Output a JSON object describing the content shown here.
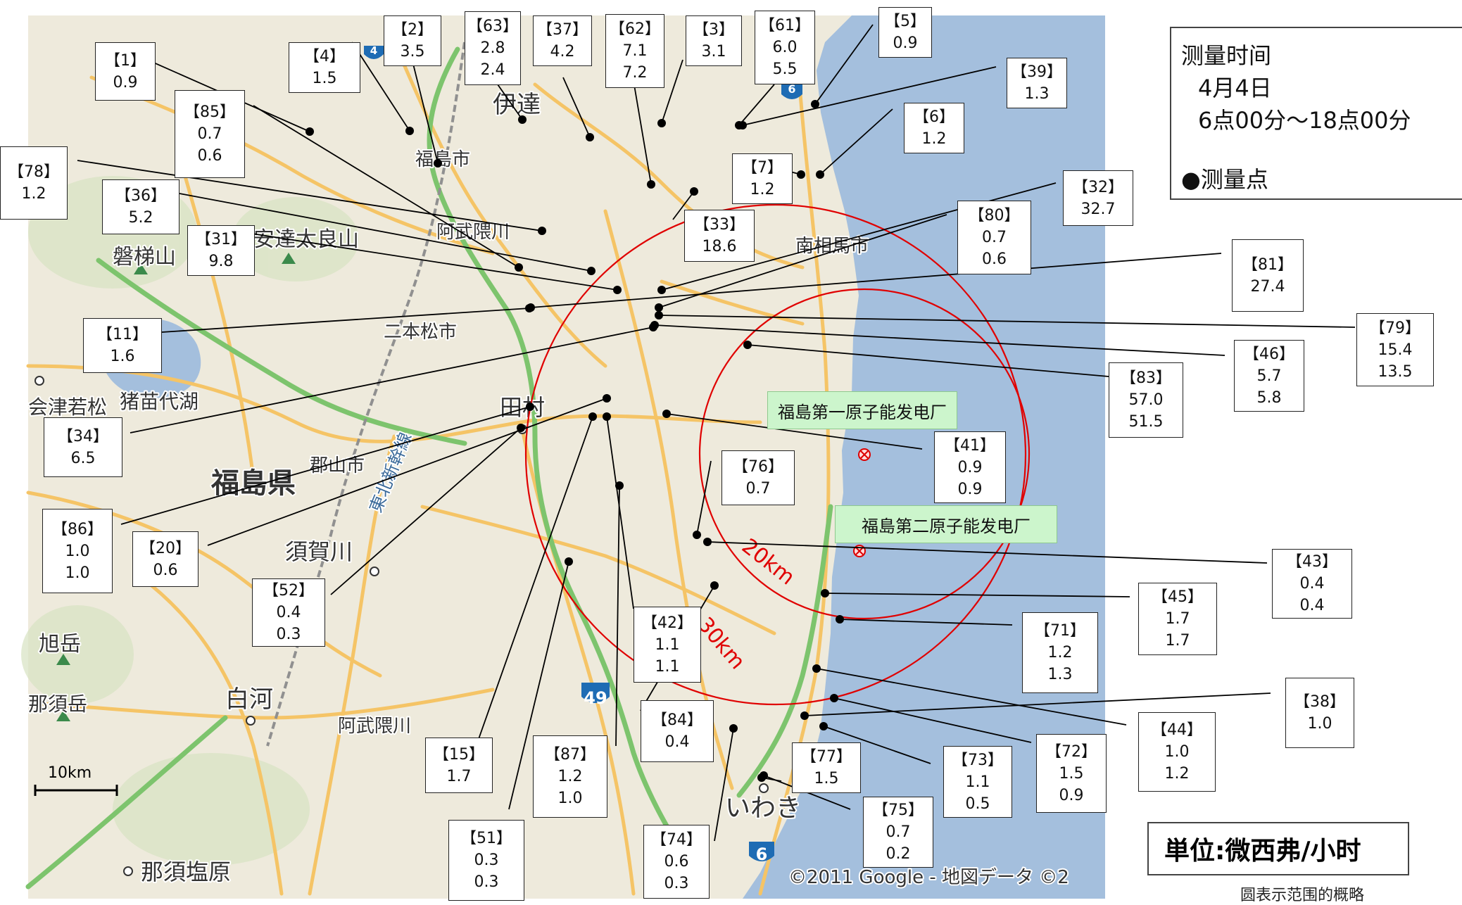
{
  "top_note": "测量 - 测量时间 测量点",
  "legend": {
    "title": "测量时间",
    "date": "4月4日",
    "time": "6点00分～18点00分",
    "point": "●测量点"
  },
  "unit": "単位:微西弗/小时",
  "circle_note": "圆表示范围的概略",
  "copyright": "©2011 Google - 地図データ ©2",
  "scale_label": "10km",
  "ring_labels": {
    "r20": "20km",
    "r30": "30km"
  },
  "plants": {
    "daiichi": "福島第一原子能发电厂",
    "daini": "福島第二原子能发电厂"
  },
  "place_names": {
    "date": "伊達",
    "fukushima_city": "福島市",
    "abukuma_n": "阿武隈川",
    "adatara": "安達太良山",
    "bandai": "磐梯山",
    "nihonmatsu": "二本松市",
    "aizuwakamatsu": "会津若松",
    "inawashiro": "猪苗代湖",
    "tamura": "田村",
    "koriyama": "郡山市",
    "fukushima_pref": "福島県",
    "sukagawa": "須賀川",
    "shinkansen": "東北新幹線",
    "asahidake": "旭岳",
    "nasudake": "那須岳",
    "shirakawa": "白河",
    "abukuma_s": "阿武隈川",
    "iwaki": "いわき",
    "nasushiobara": "那須塩原",
    "minamisoma": "南相馬市",
    "r4": "4",
    "r6": "6",
    "r6b": "6",
    "r49": "49"
  },
  "points": [
    {
      "id": "【1】",
      "v": [
        "0.9"
      ]
    },
    {
      "id": "【4】",
      "v": [
        "1.5"
      ]
    },
    {
      "id": "【2】",
      "v": [
        "3.5"
      ]
    },
    {
      "id": "【63】",
      "v": [
        "2.8",
        "2.4"
      ]
    },
    {
      "id": "【37】",
      "v": [
        "4.2"
      ]
    },
    {
      "id": "【62】",
      "v": [
        "7.1",
        "7.2"
      ]
    },
    {
      "id": "【3】",
      "v": [
        "3.1"
      ]
    },
    {
      "id": "【61】",
      "v": [
        "6.0",
        "5.5"
      ]
    },
    {
      "id": "【5】",
      "v": [
        "0.9"
      ]
    },
    {
      "id": "【39】",
      "v": [
        "1.3"
      ]
    },
    {
      "id": "【85】",
      "v": [
        "0.7",
        "0.6"
      ]
    },
    {
      "id": "【6】",
      "v": [
        "1.2"
      ]
    },
    {
      "id": "【78】",
      "v": [
        "1.2"
      ]
    },
    {
      "id": "【7】",
      "v": [
        "1.2"
      ]
    },
    {
      "id": "【36】",
      "v": [
        "5.2"
      ]
    },
    {
      "id": "【31】",
      "v": [
        "9.8"
      ]
    },
    {
      "id": "【33】",
      "v": [
        "18.6"
      ]
    },
    {
      "id": "【32】",
      "v": [
        "32.7"
      ]
    },
    {
      "id": "【80】",
      "v": [
        "0.7",
        "0.6"
      ]
    },
    {
      "id": "【81】",
      "v": [
        "27.4"
      ]
    },
    {
      "id": "【11】",
      "v": [
        "1.6"
      ]
    },
    {
      "id": "【79】",
      "v": [
        "15.4",
        "13.5"
      ]
    },
    {
      "id": "【46】",
      "v": [
        "5.7",
        "5.8"
      ]
    },
    {
      "id": "【83】",
      "v": [
        "57.0",
        "51.5"
      ]
    },
    {
      "id": "【34】",
      "v": [
        "6.5"
      ]
    },
    {
      "id": "【41】",
      "v": [
        "0.9",
        "0.9"
      ]
    },
    {
      "id": "【76】",
      "v": [
        "0.7"
      ]
    },
    {
      "id": "【86】",
      "v": [
        "1.0",
        "1.0"
      ]
    },
    {
      "id": "【20】",
      "v": [
        "0.6"
      ]
    },
    {
      "id": "【52】",
      "v": [
        "0.4",
        "0.3"
      ]
    },
    {
      "id": "【43】",
      "v": [
        "0.4",
        "0.4"
      ]
    },
    {
      "id": "【45】",
      "v": [
        "1.7",
        "1.7"
      ]
    },
    {
      "id": "【42】",
      "v": [
        "1.1",
        "1.1"
      ]
    },
    {
      "id": "【71】",
      "v": [
        "1.2",
        "1.3"
      ]
    },
    {
      "id": "【38】",
      "v": [
        "1.0"
      ]
    },
    {
      "id": "【84】",
      "v": [
        "0.4"
      ]
    },
    {
      "id": "【44】",
      "v": [
        "1.0",
        "1.2"
      ]
    },
    {
      "id": "【72】",
      "v": [
        "1.5",
        "0.9"
      ]
    },
    {
      "id": "【15】",
      "v": [
        "1.7"
      ]
    },
    {
      "id": "【87】",
      "v": [
        "1.2",
        "1.0"
      ]
    },
    {
      "id": "【77】",
      "v": [
        "1.5"
      ]
    },
    {
      "id": "【73】",
      "v": [
        "1.1",
        "0.5"
      ]
    },
    {
      "id": "【75】",
      "v": [
        "0.7",
        "0.2"
      ]
    },
    {
      "id": "【51】",
      "v": [
        "0.3",
        "0.3"
      ]
    },
    {
      "id": "【74】",
      "v": [
        "0.6",
        "0.3"
      ]
    }
  ],
  "colors": {
    "sea": "#a4bfdd",
    "land": "#eeeadc",
    "road_main": "#f5c466",
    "expressway": "#7dc46d",
    "ring": "#e00000"
  }
}
